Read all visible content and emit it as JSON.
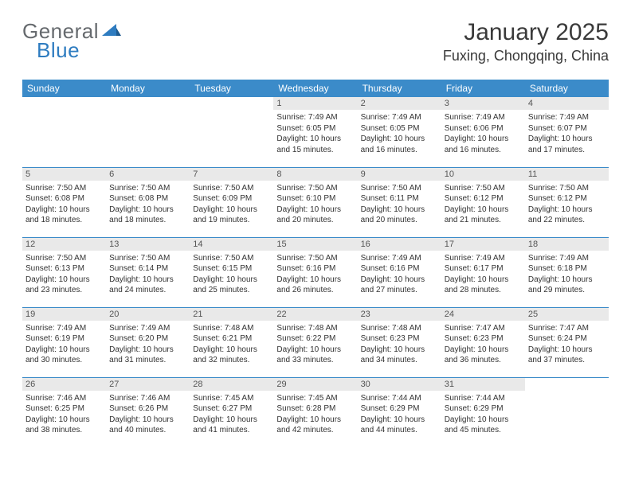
{
  "logo": {
    "general": "General",
    "blue": "Blue"
  },
  "title": "January 2025",
  "location": "Fuxing, Chongqing, China",
  "colors": {
    "header_bg": "#3b8bc9",
    "header_text": "#ffffff",
    "daynum_bg": "#e9e9e9",
    "border": "#3b8bc9",
    "text": "#333333",
    "logo_gray": "#666a6e",
    "logo_blue": "#2e7cc0"
  },
  "dow": [
    "Sunday",
    "Monday",
    "Tuesday",
    "Wednesday",
    "Thursday",
    "Friday",
    "Saturday"
  ],
  "weeks": [
    [
      null,
      null,
      null,
      {
        "d": "1",
        "sr": "7:49 AM",
        "ss": "6:05 PM",
        "dl": "10 hours and 15 minutes."
      },
      {
        "d": "2",
        "sr": "7:49 AM",
        "ss": "6:05 PM",
        "dl": "10 hours and 16 minutes."
      },
      {
        "d": "3",
        "sr": "7:49 AM",
        "ss": "6:06 PM",
        "dl": "10 hours and 16 minutes."
      },
      {
        "d": "4",
        "sr": "7:49 AM",
        "ss": "6:07 PM",
        "dl": "10 hours and 17 minutes."
      }
    ],
    [
      {
        "d": "5",
        "sr": "7:50 AM",
        "ss": "6:08 PM",
        "dl": "10 hours and 18 minutes."
      },
      {
        "d": "6",
        "sr": "7:50 AM",
        "ss": "6:08 PM",
        "dl": "10 hours and 18 minutes."
      },
      {
        "d": "7",
        "sr": "7:50 AM",
        "ss": "6:09 PM",
        "dl": "10 hours and 19 minutes."
      },
      {
        "d": "8",
        "sr": "7:50 AM",
        "ss": "6:10 PM",
        "dl": "10 hours and 20 minutes."
      },
      {
        "d": "9",
        "sr": "7:50 AM",
        "ss": "6:11 PM",
        "dl": "10 hours and 20 minutes."
      },
      {
        "d": "10",
        "sr": "7:50 AM",
        "ss": "6:12 PM",
        "dl": "10 hours and 21 minutes."
      },
      {
        "d": "11",
        "sr": "7:50 AM",
        "ss": "6:12 PM",
        "dl": "10 hours and 22 minutes."
      }
    ],
    [
      {
        "d": "12",
        "sr": "7:50 AM",
        "ss": "6:13 PM",
        "dl": "10 hours and 23 minutes."
      },
      {
        "d": "13",
        "sr": "7:50 AM",
        "ss": "6:14 PM",
        "dl": "10 hours and 24 minutes."
      },
      {
        "d": "14",
        "sr": "7:50 AM",
        "ss": "6:15 PM",
        "dl": "10 hours and 25 minutes."
      },
      {
        "d": "15",
        "sr": "7:50 AM",
        "ss": "6:16 PM",
        "dl": "10 hours and 26 minutes."
      },
      {
        "d": "16",
        "sr": "7:49 AM",
        "ss": "6:16 PM",
        "dl": "10 hours and 27 minutes."
      },
      {
        "d": "17",
        "sr": "7:49 AM",
        "ss": "6:17 PM",
        "dl": "10 hours and 28 minutes."
      },
      {
        "d": "18",
        "sr": "7:49 AM",
        "ss": "6:18 PM",
        "dl": "10 hours and 29 minutes."
      }
    ],
    [
      {
        "d": "19",
        "sr": "7:49 AM",
        "ss": "6:19 PM",
        "dl": "10 hours and 30 minutes."
      },
      {
        "d": "20",
        "sr": "7:49 AM",
        "ss": "6:20 PM",
        "dl": "10 hours and 31 minutes."
      },
      {
        "d": "21",
        "sr": "7:48 AM",
        "ss": "6:21 PM",
        "dl": "10 hours and 32 minutes."
      },
      {
        "d": "22",
        "sr": "7:48 AM",
        "ss": "6:22 PM",
        "dl": "10 hours and 33 minutes."
      },
      {
        "d": "23",
        "sr": "7:48 AM",
        "ss": "6:23 PM",
        "dl": "10 hours and 34 minutes."
      },
      {
        "d": "24",
        "sr": "7:47 AM",
        "ss": "6:23 PM",
        "dl": "10 hours and 36 minutes."
      },
      {
        "d": "25",
        "sr": "7:47 AM",
        "ss": "6:24 PM",
        "dl": "10 hours and 37 minutes."
      }
    ],
    [
      {
        "d": "26",
        "sr": "7:46 AM",
        "ss": "6:25 PM",
        "dl": "10 hours and 38 minutes."
      },
      {
        "d": "27",
        "sr": "7:46 AM",
        "ss": "6:26 PM",
        "dl": "10 hours and 40 minutes."
      },
      {
        "d": "28",
        "sr": "7:45 AM",
        "ss": "6:27 PM",
        "dl": "10 hours and 41 minutes."
      },
      {
        "d": "29",
        "sr": "7:45 AM",
        "ss": "6:28 PM",
        "dl": "10 hours and 42 minutes."
      },
      {
        "d": "30",
        "sr": "7:44 AM",
        "ss": "6:29 PM",
        "dl": "10 hours and 44 minutes."
      },
      {
        "d": "31",
        "sr": "7:44 AM",
        "ss": "6:29 PM",
        "dl": "10 hours and 45 minutes."
      },
      null
    ]
  ],
  "labels": {
    "sunrise": "Sunrise:",
    "sunset": "Sunset:",
    "daylight": "Daylight:"
  }
}
